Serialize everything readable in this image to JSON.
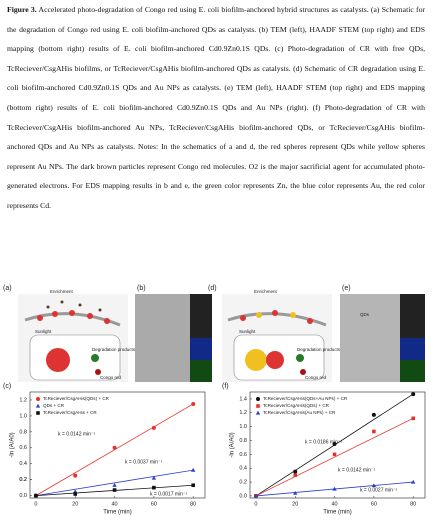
{
  "caption": {
    "label": "Figure 3.",
    "text": "Accelerated photo-degradation of Congo red using E. coli biofilm-anchored hybrid structures as catalysts. (a) Schematic for the degradation of Congo red using E. coli biofilm-anchored QDs as catalysts. (b) TEM (left), HAADF STEM (top right) and EDS mapping (bottom right) results of E. coli biofilm-anchored Cd0.9Zn0.1S QDs. (c) Photo-degradation of CR with free QDs, TcReciever/CsgAHis biofilms, or TcReciever/CsgAHis biofilm-anchored QDs as catalysts. (d) Schematic of CR degradation using E. coli biofilm-anchored Cd0.9Zn0.1S QDs and Au NPs as catalysts. (e) TEM (left), HAADF STEM (top right) and EDS mapping (bottom right) results of E. coli biofilm-anchored Cd0.9Zn0.1S QDs and Au NPs (right). (f) Photo-degradation of CR with TcReciever/CsgAHis biofilm-anchored Au NPs, TcReciever/CsgAHis biofilm-anchored QDs, or TcReciever/CsgAHis biofilm-anchored QDs and Au NPs as catalysts. Notes: In the schematics of a and d, the red spheres represent QDs while yellow spheres represent Au NPs. The dark brown particles represent Congo red molecules. O2 is the major sacrificial agent for accumulated photo-generated electrons. For EDS mapping results in b and e, the green color represents Zn, the blue color represents Au, the red color represents Cd."
  },
  "figure": {
    "panels": [
      {
        "label": "(a)",
        "texts": [
          "Enrichment",
          "Sunlight",
          "Degradation products",
          "Congo red"
        ]
      },
      {
        "label": "(b)",
        "texts": [
          "QDs",
          "5 nm"
        ]
      },
      {
        "label": "(d)",
        "texts": [
          "Enrichment",
          "Sunlight",
          "Degradation products",
          "Congo red"
        ]
      },
      {
        "label": "(e)",
        "texts": [
          "QDs",
          "Au",
          "5 nm"
        ]
      }
    ]
  },
  "chart_data": [
    {
      "type": "scatter",
      "label": "(c)",
      "x_label": "Time (min)",
      "y_label": "-ln (A/A0)",
      "x": [
        0,
        20,
        40,
        60,
        80
      ],
      "xlim": [
        -3,
        86
      ],
      "xticks": [
        0,
        20,
        40,
        60,
        80
      ],
      "ylim": [
        -0.03,
        1.3
      ],
      "yticks": [
        {
          "value": 0,
          "label": "0.0"
        },
        0.2,
        0.4,
        0.6,
        0.8,
        {
          "value": 1,
          "label": "1.0"
        },
        0.2,
        1.2
      ],
      "series": [
        {
          "name": "TcReciever/CsgAHis(QDs) + CR",
          "color": "#e8302a",
          "marker": "circle",
          "values": [
            0,
            0.25,
            0.6,
            0.85,
            1.15
          ]
        },
        {
          "name": "QDs + CR",
          "color": "#2a3fd0",
          "marker": "triangle",
          "values": [
            0,
            0.05,
            0.13,
            0.22,
            0.32
          ]
        },
        {
          "name": "TcReciever/CsgAHis + CR",
          "color": "#111111",
          "marker": "square",
          "values": [
            0,
            0.02,
            0.07,
            0.1,
            0.13
          ]
        }
      ],
      "annotations": [
        "k = 0.0142 min⁻¹",
        "k = 0.0037 min⁻¹",
        "k = 0.0017 min⁻¹"
      ]
    },
    {
      "type": "scatter",
      "label": "(f)",
      "x_label": "Time (min)",
      "y_label": "-ln (A/A0)",
      "x": [
        0,
        20,
        40,
        60,
        80
      ],
      "xlim": [
        -3,
        86
      ],
      "xticks": [
        0,
        20,
        40,
        60,
        80
      ],
      "ylim": [
        -0.03,
        1.5
      ],
      "yticks": [
        {
          "value": 0,
          "label": "0.0"
        },
        0.2,
        0.4,
        0.6,
        0.8,
        {
          "value": 1,
          "label": "1.0"
        },
        1.2,
        1.4
      ],
      "series": [
        {
          "name": "TcReciever/CsgAHis(QDs+Au NPs) + CR",
          "color": "#111111",
          "marker": "circle",
          "values": [
            0,
            0.35,
            0.75,
            1.17,
            1.47
          ]
        },
        {
          "name": "TcReciever/CsgAHis(QDs) + CR",
          "color": "#e8302a",
          "marker": "square",
          "values": [
            0,
            0.3,
            0.6,
            0.93,
            1.12
          ]
        },
        {
          "name": "TcReciever/CsgAHis(Au NPs) + CR",
          "color": "#2a3fd0",
          "marker": "triangle",
          "values": [
            0,
            0.04,
            0.1,
            0.15,
            0.2
          ]
        }
      ],
      "annotations": [
        "k = 0.0186 min⁻¹",
        "k = 0.0142 min⁻¹",
        "k = 0.0027 min⁻¹"
      ]
    }
  ]
}
